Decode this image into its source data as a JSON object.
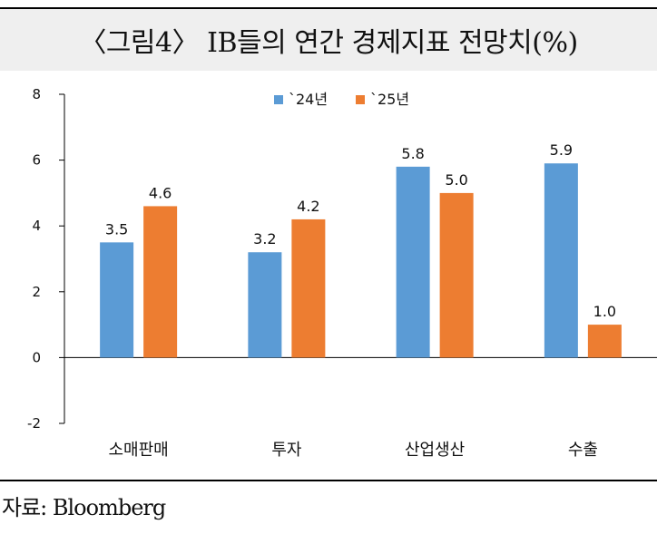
{
  "title": "〈그림4〉 IB들의 연간 경제지표 전망치(%)",
  "source": "자료: Bloomberg",
  "chart_data": {
    "type": "bar",
    "categories": [
      "소매판매",
      "투자",
      "산업생산",
      "수출"
    ],
    "series": [
      {
        "name": "`24년",
        "values": [
          3.5,
          3.2,
          5.8,
          5.9
        ],
        "color": "#5b9bd5"
      },
      {
        "name": "`25년",
        "values": [
          4.6,
          4.2,
          5.0,
          1.0
        ],
        "color": "#ed7d31"
      }
    ],
    "data_labels": [
      [
        "3.5",
        "3.2",
        "5.8",
        "5.9"
      ],
      [
        "4.6",
        "4.2",
        "5.0",
        "1.0"
      ]
    ],
    "ylim": [
      -2,
      8
    ],
    "yticks": [
      -2,
      0,
      2,
      4,
      6,
      8
    ],
    "legend_position": "top-center",
    "grid": false
  }
}
